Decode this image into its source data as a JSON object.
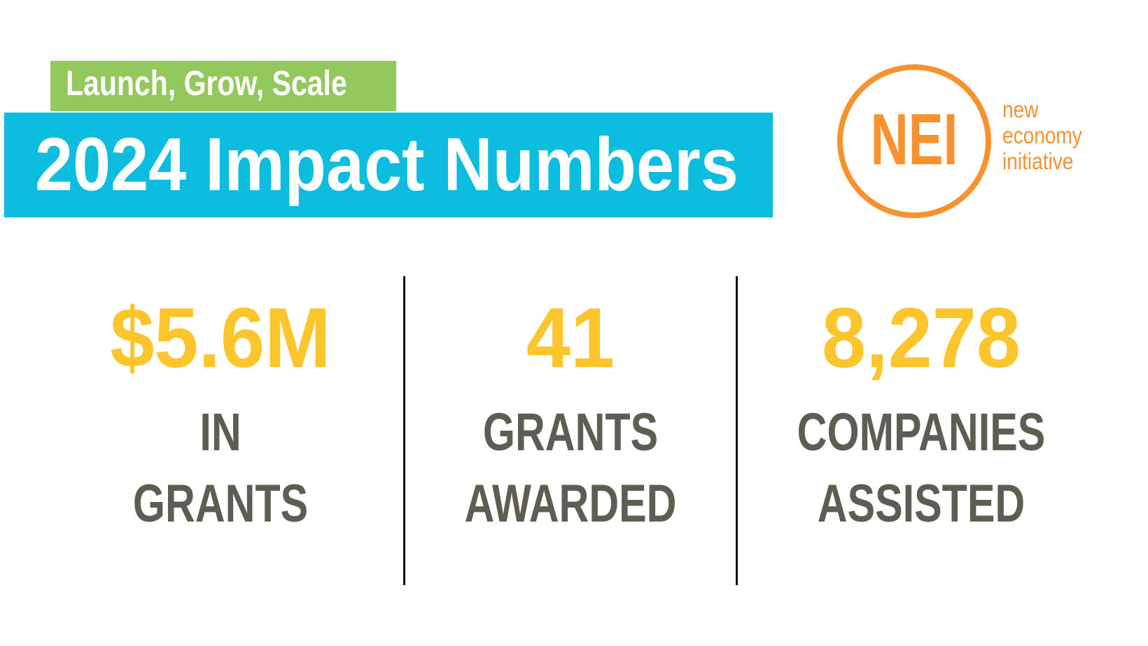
{
  "colors": {
    "tagline_bg": "#93c85c",
    "title_bg": "#0cbde0",
    "logo_orange": "#f7922f",
    "stat_value": "#fcc52b",
    "stat_label": "#5f5d52"
  },
  "header": {
    "tagline": "Launch, Grow, Scale",
    "title": "2024 Impact Numbers"
  },
  "logo": {
    "mark": "NEI",
    "words": [
      "new",
      "economy",
      "initiative"
    ]
  },
  "stats": [
    {
      "value": "$5.6M",
      "label_lines": [
        "IN",
        "GRANTS"
      ]
    },
    {
      "value": "41",
      "label_lines": [
        "GRANTS",
        "AWARDED"
      ]
    },
    {
      "value": "8,278",
      "label_lines": [
        "COMPANIES",
        "ASSISTED"
      ]
    }
  ]
}
